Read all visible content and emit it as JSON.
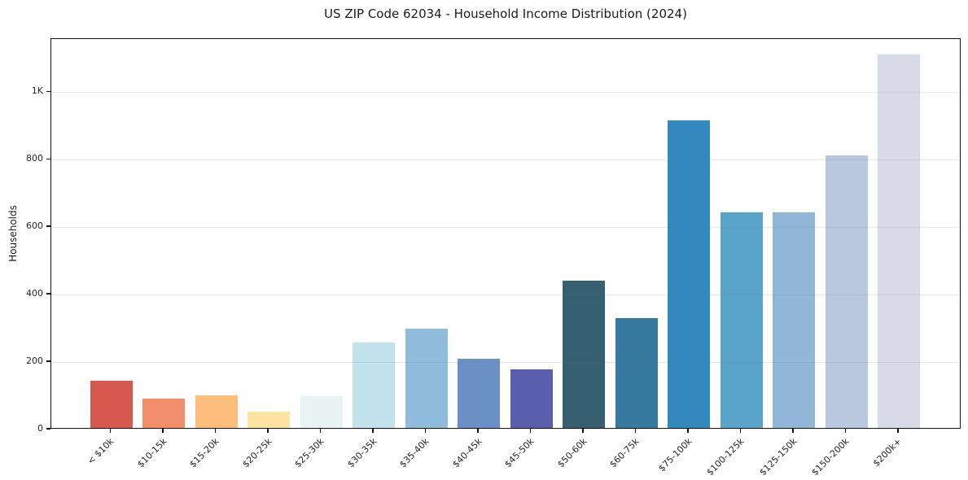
{
  "chart_data": {
    "type": "bar",
    "title": "US ZIP Code 62034 - Household Income Distribution (2024)",
    "xlabel": "",
    "ylabel": "Households",
    "categories": [
      "< $10k",
      "$10-15k",
      "$15-20k",
      "$20-25k",
      "$25-30k",
      "$30-35k",
      "$35-40k",
      "$40-45k",
      "$45-50k",
      "$50-60k",
      "$60-75k",
      "$75-100k",
      "$100-125k",
      "$125-150k",
      "$150-200k",
      "$200k+"
    ],
    "values": [
      140,
      86,
      97,
      48,
      95,
      254,
      293,
      205,
      173,
      437,
      325,
      911,
      638,
      638,
      808,
      1106
    ],
    "bar_colors": [
      "#d6584f",
      "#f28e6c",
      "#fcbd7d",
      "#fde5a1",
      "#e8f4f4",
      "#c2e2ee",
      "#90bddc",
      "#6a90c5",
      "#5b5dad",
      "#36606f",
      "#38799f",
      "#3389be",
      "#5ba4c9",
      "#92b6d7",
      "#b9c8de",
      "#d8dae8"
    ],
    "ylim": [
      0,
      1157
    ],
    "ytick_values": [
      0,
      200,
      400,
      600,
      800,
      1000
    ],
    "ytick_labels": [
      "0",
      "200",
      "400",
      "600",
      "800",
      "1K"
    ],
    "grid": "horizontal",
    "legend": "none",
    "background_color": "#ffffff",
    "gridline_color": "#e9e9e9",
    "spine_color": "#111111",
    "text_color": "#262626"
  }
}
